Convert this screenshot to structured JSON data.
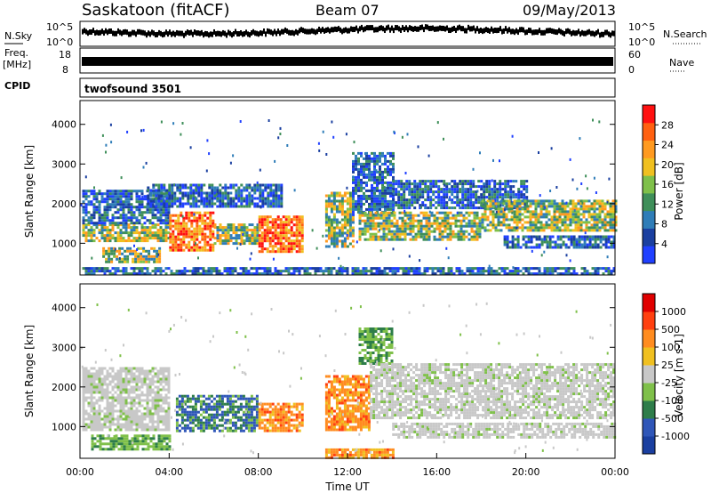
{
  "header": {
    "site": "Saskatoon (fitACF)",
    "beam": "Beam 07",
    "date": "09/May/2013"
  },
  "strips": {
    "nsky_label": "N.Sky",
    "nsky_ticks": [
      "10^5",
      "10^0"
    ],
    "nsearch_label": "N.Search",
    "nsearch_ticks": [
      "10^5",
      "10^0"
    ],
    "freq_label_1": "Freq.",
    "freq_label_2": "[MHz]",
    "freq_ticks": [
      "18",
      "8"
    ],
    "nave_label": "Nave",
    "nave_ticks": [
      "60",
      "0"
    ],
    "cpid_label": "CPID",
    "cpid_value": "twofsound 3501"
  },
  "chart_data": [
    {
      "type": "heatmap",
      "name": "power",
      "ylabel": "Slant Range [km]",
      "ylim": [
        200,
        4600
      ],
      "yticks": [
        "1000",
        "2000",
        "3000",
        "4000"
      ],
      "xlim_hours": [
        0,
        24
      ],
      "colorbar": {
        "label": "Power [dB]",
        "ticks": [
          "28",
          "24",
          "20",
          "16",
          "12",
          "8",
          "4"
        ],
        "colors": [
          "#2040ff",
          "#1a3fa0",
          "#2f7db8",
          "#3f8f5a",
          "#7fc04a",
          "#f0c020",
          "#ff9a20",
          "#ff6010",
          "#ff1010"
        ]
      },
      "bands": [
        {
          "t0": 0.1,
          "t1": 4.0,
          "r0": 1050,
          "r1": 1500,
          "level": "med"
        },
        {
          "t0": 0.1,
          "t1": 4.0,
          "r0": 1500,
          "r1": 2350,
          "level": "low"
        },
        {
          "t0": 1.0,
          "t1": 3.6,
          "r0": 550,
          "r1": 900,
          "level": "med"
        },
        {
          "t0": 4.0,
          "t1": 6.0,
          "r0": 800,
          "r1": 1800,
          "level": "high"
        },
        {
          "t0": 6.0,
          "t1": 8.0,
          "r0": 1000,
          "r1": 1500,
          "level": "med"
        },
        {
          "t0": 8.0,
          "t1": 10.0,
          "r0": 800,
          "r1": 1700,
          "level": "high"
        },
        {
          "t0": 3.0,
          "t1": 9.0,
          "r0": 1900,
          "r1": 2500,
          "level": "low"
        },
        {
          "t0": 11.0,
          "t1": 12.3,
          "r0": 900,
          "r1": 2300,
          "level": "med"
        },
        {
          "t0": 12.2,
          "t1": 14.0,
          "r0": 1700,
          "r1": 3300,
          "level": "low"
        },
        {
          "t0": 12.5,
          "t1": 18.0,
          "r0": 1100,
          "r1": 1800,
          "level": "med"
        },
        {
          "t0": 14.0,
          "t1": 20.0,
          "r0": 1900,
          "r1": 2600,
          "level": "low"
        },
        {
          "t0": 18.0,
          "t1": 24.0,
          "r0": 1300,
          "r1": 2100,
          "level": "med"
        },
        {
          "t0": 19.0,
          "t1": 24.0,
          "r0": 900,
          "r1": 1200,
          "level": "low"
        },
        {
          "t0": 0.1,
          "t1": 24.0,
          "r0": 200,
          "r1": 400,
          "level": "low"
        }
      ]
    },
    {
      "type": "heatmap",
      "name": "velocity",
      "ylabel": "Slant Range [km]",
      "ylim": [
        200,
        4600
      ],
      "yticks": [
        "1000",
        "2000",
        "3000",
        "4000"
      ],
      "xlabel": "Time UT",
      "xticks": [
        "00:00",
        "04:00",
        "08:00",
        "12:00",
        "16:00",
        "20:00",
        "00:00"
      ],
      "colorbar": {
        "label": "Velocity [m s-1]",
        "ticks": [
          "1000",
          "500",
          "100",
          "25",
          "-25",
          "-100",
          "-500",
          "-1000"
        ],
        "colors": [
          "#1a3fa0",
          "#2f56b8",
          "#2e7d4a",
          "#7fc04a",
          "#c8c8c8",
          "#f0c020",
          "#ff8c20",
          "#ff4010",
          "#e00000"
        ]
      },
      "bands": [
        {
          "t0": 0.1,
          "t1": 4.0,
          "r0": 900,
          "r1": 2500,
          "level": "grey"
        },
        {
          "t0": 4.3,
          "t1": 8.0,
          "r0": 900,
          "r1": 1800,
          "level": "blue"
        },
        {
          "t0": 8.0,
          "t1": 10.0,
          "r0": 900,
          "r1": 1600,
          "level": "orange"
        },
        {
          "t0": 11.0,
          "t1": 13.0,
          "r0": 900,
          "r1": 2300,
          "level": "orange"
        },
        {
          "t0": 12.5,
          "t1": 14.0,
          "r0": 2600,
          "r1": 3500,
          "level": "green"
        },
        {
          "t0": 13.0,
          "t1": 24.0,
          "r0": 1200,
          "r1": 2600,
          "level": "grey"
        },
        {
          "t0": 14.0,
          "t1": 24.0,
          "r0": 700,
          "r1": 1100,
          "level": "grey"
        },
        {
          "t0": 0.5,
          "t1": 4.0,
          "r0": 400,
          "r1": 800,
          "level": "green"
        },
        {
          "t0": 11.0,
          "t1": 14.0,
          "r0": 200,
          "r1": 450,
          "level": "orange"
        }
      ]
    }
  ]
}
